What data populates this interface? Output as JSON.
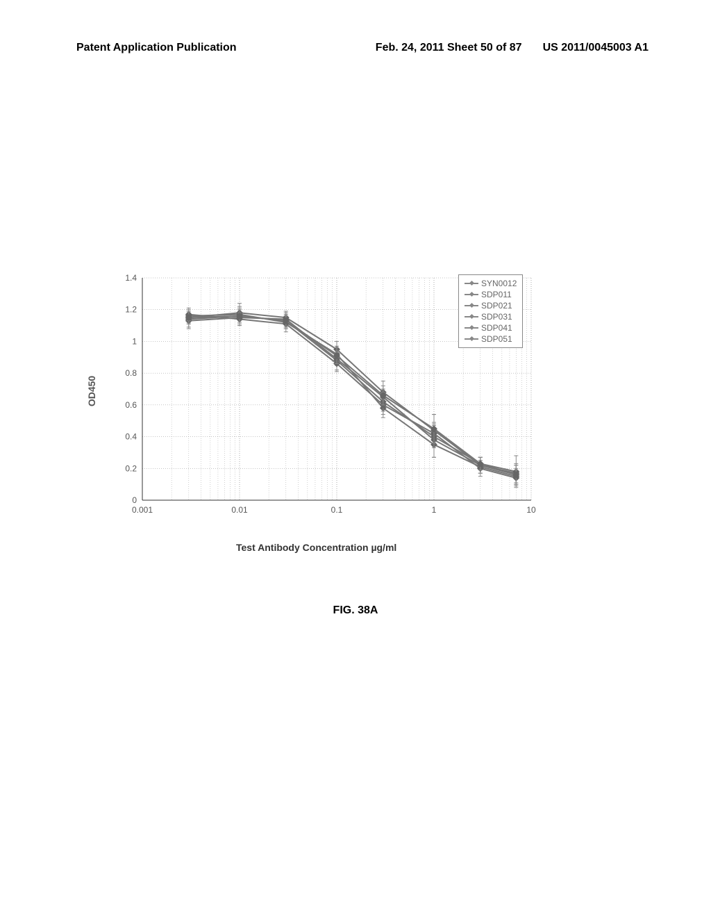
{
  "header": {
    "left": "Patent Application Publication",
    "center": "Feb. 24, 2011  Sheet 50 of 87",
    "right": "US 2011/0045003 A1"
  },
  "chart": {
    "type": "line",
    "x_scale": "log",
    "xlim": [
      0.001,
      10
    ],
    "ylim": [
      0,
      1.4
    ],
    "ytick_step": 0.2,
    "xtick_labels": [
      "0.001",
      "0.01",
      "0.1",
      "1",
      "10"
    ],
    "ytick_labels": [
      "0",
      "0.2",
      "0.4",
      "0.6",
      "0.8",
      "1",
      "1.2",
      "1.4"
    ],
    "ylabel": "OD450",
    "xlabel": "Test Antibody Concentration µg/ml",
    "grid_color": "#888888",
    "background_color": "#ffffff",
    "line_color": "#777777",
    "line_width": 2,
    "marker_color": "#666666",
    "error_bar_color": "#888888",
    "x_values": [
      0.003,
      0.01,
      0.03,
      0.1,
      0.3,
      1,
      3,
      7
    ],
    "series": [
      {
        "name": "SYN0012",
        "y": [
          1.15,
          1.18,
          1.15,
          0.95,
          0.68,
          0.44,
          0.22,
          0.16
        ],
        "err": [
          0.04,
          0.06,
          0.04,
          0.05,
          0.07,
          0.1,
          0.05,
          0.06
        ]
      },
      {
        "name": "SDP011",
        "y": [
          1.14,
          1.16,
          1.13,
          0.88,
          0.62,
          0.4,
          0.23,
          0.18
        ],
        "err": [
          0.05,
          0.04,
          0.05,
          0.06,
          0.06,
          0.07,
          0.04,
          0.1
        ]
      },
      {
        "name": "SDP021",
        "y": [
          1.16,
          1.17,
          1.12,
          0.92,
          0.58,
          0.35,
          0.21,
          0.15
        ],
        "err": [
          0.04,
          0.05,
          0.04,
          0.05,
          0.06,
          0.08,
          0.04,
          0.05
        ]
      },
      {
        "name": "SDP031",
        "y": [
          1.13,
          1.15,
          1.14,
          0.89,
          0.65,
          0.38,
          0.22,
          0.17
        ],
        "err": [
          0.05,
          0.05,
          0.05,
          0.04,
          0.05,
          0.11,
          0.05,
          0.06
        ]
      },
      {
        "name": "SDP041",
        "y": [
          1.17,
          1.14,
          1.11,
          0.86,
          0.6,
          0.42,
          0.2,
          0.14
        ],
        "err": [
          0.04,
          0.04,
          0.05,
          0.05,
          0.06,
          0.06,
          0.05,
          0.05
        ]
      },
      {
        "name": "SDP051",
        "y": [
          1.15,
          1.16,
          1.13,
          0.91,
          0.66,
          0.45,
          0.23,
          0.16
        ],
        "err": [
          0.04,
          0.05,
          0.04,
          0.05,
          0.06,
          0.09,
          0.04,
          0.06
        ]
      }
    ]
  },
  "figure_label": "FIG. 38A",
  "legend_items": [
    "SYN0012",
    "SDP011",
    "SDP021",
    "SDP031",
    "SDP041",
    "SDP051"
  ]
}
